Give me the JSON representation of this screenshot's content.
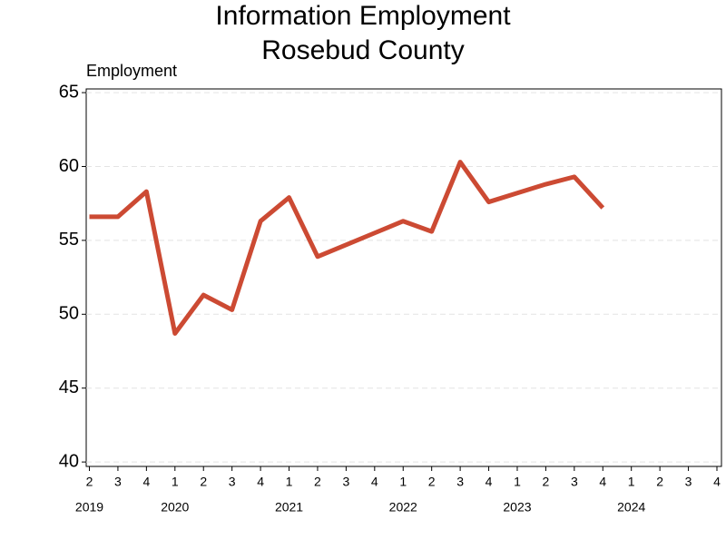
{
  "chart_data": {
    "type": "line",
    "title": "Information Employment",
    "subtitle": "Rosebud County",
    "y_label": "Employment",
    "categories": [
      "2",
      "3",
      "4",
      "1",
      "2",
      "3",
      "4",
      "1",
      "2",
      "3",
      "4",
      "1",
      "2",
      "3",
      "4",
      "1",
      "2",
      "3",
      "4",
      "1",
      "2",
      "3",
      "4"
    ],
    "years": [
      "2019",
      null,
      null,
      "2020",
      null,
      null,
      null,
      "2021",
      null,
      null,
      null,
      "2022",
      null,
      null,
      null,
      "2023",
      null,
      null,
      null,
      "2024",
      null,
      null,
      null
    ],
    "series": [
      {
        "name": "Employment",
        "color": "#cc4a33",
        "values": [
          56.6,
          56.6,
          58.3,
          48.7,
          51.3,
          50.3,
          56.3,
          57.9,
          53.9,
          54.7,
          55.5,
          56.3,
          55.6,
          60.3,
          57.6,
          58.2,
          58.8,
          59.3,
          57.2,
          null,
          null,
          null,
          null
        ]
      }
    ],
    "ylim": [
      39.7,
      65.25
    ],
    "yticks": [
      40,
      45,
      50,
      55,
      60,
      65
    ],
    "grid": true
  }
}
